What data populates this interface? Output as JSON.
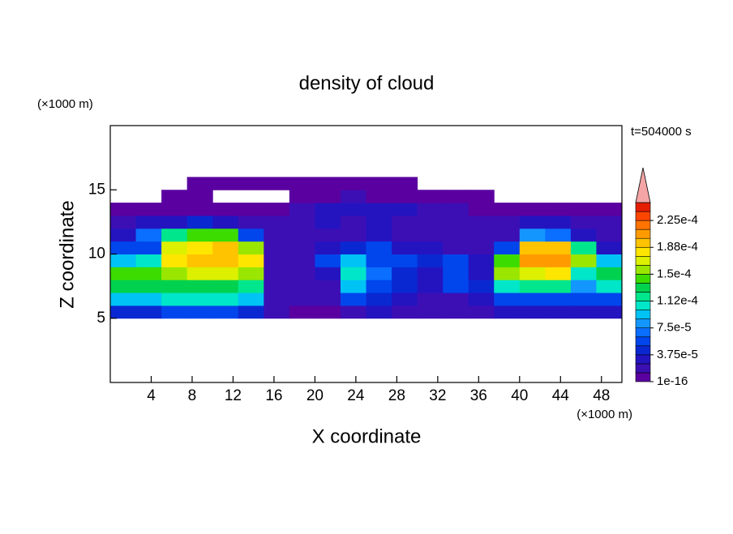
{
  "chart_data": {
    "type": "contour",
    "title": "density of cloud",
    "time_label": "t=504000 s",
    "xlabel": "X coordinate",
    "ylabel": "Z coordinate",
    "x_unit": "(×1000 m)",
    "y_unit": "(×1000 m)",
    "xlim": [
      0,
      50
    ],
    "ylim": [
      0,
      20
    ],
    "xticks": [
      4,
      8,
      12,
      16,
      20,
      24,
      28,
      32,
      36,
      40,
      44,
      48
    ],
    "yticks": [
      5,
      10,
      15
    ],
    "x": [
      1.25,
      3.75,
      6.25,
      8.75,
      11.25,
      13.75,
      16.25,
      18.75,
      21.25,
      23.75,
      26.25,
      28.75,
      31.25,
      33.75,
      36.25,
      38.75,
      41.25,
      43.75,
      46.25,
      48.75
    ],
    "z": [
      5.5,
      6.5,
      7.5,
      8.5,
      9.5,
      10.5,
      11.5,
      12.5,
      13.5,
      14.5,
      15.5
    ],
    "values": [
      [
        4e-05,
        4e-05,
        5e-05,
        5e-05,
        5e-05,
        4e-05,
        1.5e-05,
        1e-05,
        1e-05,
        2e-05,
        2.5e-05,
        2e-05,
        1.5e-05,
        1.5e-05,
        2e-05,
        2.5e-05,
        3e-05,
        3e-05,
        3e-05,
        3e-05
      ],
      [
        9e-05,
        9e-05,
        0.0001,
        0.0001,
        0.0001,
        9e-05,
        2e-05,
        1.5e-05,
        2e-05,
        5e-05,
        4e-05,
        3e-05,
        2e-05,
        2e-05,
        3e-05,
        5e-05,
        6e-05,
        6e-05,
        5e-05,
        6e-05
      ],
      [
        0.00013,
        0.000125,
        0.00013,
        0.00013,
        0.000125,
        0.00012,
        2e-05,
        1.5e-05,
        2e-05,
        9e-05,
        6e-05,
        4e-05,
        3e-05,
        6e-05,
        4e-05,
        0.0001,
        0.00012,
        0.00012,
        8e-05,
        0.00011
      ],
      [
        0.00014,
        0.000145,
        0.00016,
        0.00017,
        0.000165,
        0.00016,
        2e-05,
        1.5e-05,
        3e-05,
        0.00011,
        7e-05,
        4e-05,
        3e-05,
        5e-05,
        3e-05,
        0.00015,
        0.00017,
        0.00018,
        0.00011,
        0.00013
      ],
      [
        9e-05,
        0.0001,
        0.00018,
        0.000195,
        0.00019,
        0.000185,
        2e-05,
        2e-05,
        5e-05,
        9e-05,
        6e-05,
        5e-05,
        4e-05,
        5e-05,
        3e-05,
        0.00014,
        0.00021,
        0.000205,
        0.00016,
        9e-05
      ],
      [
        5e-05,
        6e-05,
        0.00017,
        0.000185,
        0.00019,
        0.00016,
        2e-05,
        2e-05,
        3e-05,
        4e-05,
        5e-05,
        3e-05,
        3e-05,
        2e-05,
        2e-05,
        5e-05,
        0.00019,
        0.00019,
        0.00012,
        3e-05
      ],
      [
        3e-05,
        7e-05,
        0.00012,
        0.00014,
        0.00014,
        5e-05,
        1.5e-05,
        2e-05,
        2e-05,
        2e-05,
        3e-05,
        2e-05,
        2e-05,
        2e-05,
        1.5e-05,
        2e-05,
        8e-05,
        7e-05,
        3e-05,
        2e-05
      ],
      [
        2e-05,
        3e-05,
        3e-05,
        4e-05,
        3e-05,
        2e-05,
        1.5e-05,
        2e-05,
        2.5e-05,
        2e-05,
        2.5e-05,
        2e-05,
        2e-05,
        1.5e-05,
        1.5e-05,
        2e-05,
        3e-05,
        3e-05,
        2e-05,
        1.5e-05
      ],
      [
        1e-05,
        1e-05,
        1e-05,
        1e-05,
        1e-05,
        1e-05,
        1e-05,
        2e-05,
        3e-05,
        3e-05,
        3.5e-05,
        3e-05,
        2e-05,
        1.5e-05,
        1e-05,
        1e-05,
        1e-05,
        1e-05,
        1e-05,
        1e-05
      ],
      [
        null,
        null,
        1e-05,
        5e-06,
        null,
        null,
        null,
        5e-06,
        1e-05,
        1.5e-05,
        1e-05,
        1e-05,
        1e-05,
        1e-05,
        5e-06,
        null,
        null,
        null,
        null,
        null
      ],
      [
        null,
        null,
        null,
        5e-06,
        5e-06,
        5e-06,
        5e-06,
        5e-06,
        5e-06,
        5e-06,
        5e-06,
        5e-06,
        null,
        null,
        null,
        null,
        null,
        null,
        null,
        null
      ]
    ],
    "levels": [
      1e-16,
      1.25e-05,
      2.5e-05,
      3.75e-05,
      5e-05,
      6.25e-05,
      7.5e-05,
      8.75e-05,
      0.0001,
      0.0001125,
      0.000125,
      0.0001375,
      0.00015,
      0.0001625,
      0.000175,
      0.0001875,
      0.0002,
      0.0002125,
      0.000225,
      0.0002375,
      0.00025
    ],
    "colors": [
      "#5a00a0",
      "#3c0fb4",
      "#2414c0",
      "#0a28d2",
      "#0046ec",
      "#0a6eff",
      "#1496ff",
      "#00c3f5",
      "#00e6c8",
      "#00e68c",
      "#00d250",
      "#3cdc00",
      "#9ae600",
      "#dcf000",
      "#ffe600",
      "#ffc300",
      "#ff9b00",
      "#ff7300",
      "#ff4600",
      "#e61e00"
    ],
    "over_color": "#f5a5a5",
    "colorbar_ticks": [
      {
        "value": 1e-16,
        "label": "1e-16"
      },
      {
        "value": 3.75e-05,
        "label": "3.75e-5"
      },
      {
        "value": 7.5e-05,
        "label": "7.5e-5"
      },
      {
        "value": 0.0001125,
        "label": "1.12e-4"
      },
      {
        "value": 0.00015,
        "label": "1.5e-4"
      },
      {
        "value": 0.0001875,
        "label": "1.88e-4"
      },
      {
        "value": 0.000225,
        "label": "2.25e-4"
      }
    ]
  }
}
